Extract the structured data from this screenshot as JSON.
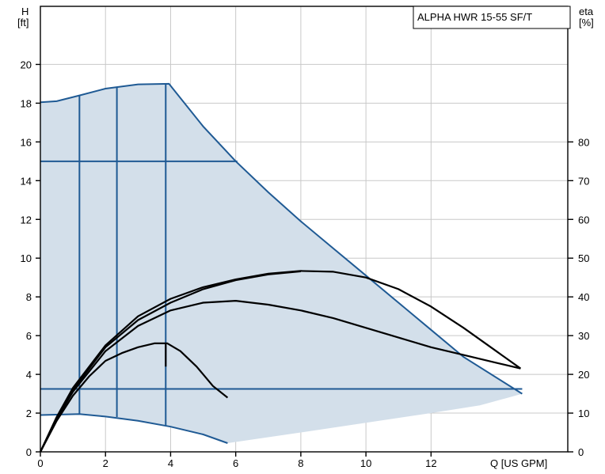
{
  "chart_data": {
    "type": "line",
    "title": "ALPHA HWR 15-55 SF/T",
    "left_axis": {
      "label_line1": "H",
      "label_line2": "[ft]",
      "ticks": [
        0,
        2,
        4,
        6,
        8,
        10,
        12,
        14,
        16,
        18,
        20
      ],
      "range": [
        0,
        23
      ]
    },
    "right_axis": {
      "label_line1": "eta",
      "label_line2": "[%]",
      "ticks": [
        0,
        10,
        20,
        30,
        40,
        50,
        60,
        70,
        80
      ],
      "range": [
        0,
        115
      ]
    },
    "x_axis": {
      "label": "Q [US GPM]",
      "ticks": [
        0,
        2,
        4,
        6,
        8,
        10,
        12
      ],
      "range": [
        0,
        16.2
      ]
    },
    "grid": true,
    "colors": {
      "envelope_fill": "#d3dfea",
      "curve_blue": "#1f5a94",
      "eff_curve": "#000000",
      "grid": "#c8c8c8"
    },
    "envelope": {
      "max_curve": [
        [
          0,
          18.05
        ],
        [
          0.5,
          18.1
        ],
        [
          1.2,
          18.4
        ],
        [
          2,
          18.75
        ],
        [
          3,
          18.97
        ],
        [
          3.95,
          19.0
        ]
      ],
      "max_right_edge": [
        [
          3.95,
          19.0
        ],
        [
          5,
          16.8
        ],
        [
          6,
          15.0
        ],
        [
          7,
          13.4
        ],
        [
          8,
          11.9
        ],
        [
          9,
          10.5
        ],
        [
          10,
          9.1
        ],
        [
          11,
          7.7
        ],
        [
          12,
          6.3
        ],
        [
          13,
          4.9
        ],
        [
          14.8,
          3.0
        ]
      ],
      "min_curve": [
        [
          0,
          1.9
        ],
        [
          1.2,
          1.95
        ],
        [
          2,
          1.82
        ],
        [
          3,
          1.6
        ],
        [
          4,
          1.3
        ],
        [
          5,
          0.9
        ],
        [
          5.75,
          0.45
        ]
      ],
      "bottom_edge": [
        [
          5.75,
          0.45
        ],
        [
          8,
          1.0
        ],
        [
          10,
          1.5
        ],
        [
          12,
          2.0
        ],
        [
          13.5,
          2.4
        ],
        [
          14.8,
          3.0
        ]
      ]
    },
    "constant_pressure_lines": [
      {
        "y": 15.0,
        "x_end": 6.05
      },
      {
        "y": 3.25,
        "x_end": 14.8
      }
    ],
    "proportional_lines": [
      {
        "x": 1.2,
        "y_bottom": 1.95,
        "y_top": 18.4
      },
      {
        "x": 2.35,
        "y_bottom": 1.8,
        "y_top": 18.85
      },
      {
        "x": 3.85,
        "y_bottom": 1.35,
        "y_top": 19.0
      }
    ],
    "efficiency_curves": [
      {
        "points": [
          [
            0,
            0
          ],
          [
            0.5,
            8
          ],
          [
            1,
            14.5
          ],
          [
            1.5,
            19.5
          ],
          [
            2,
            23.5
          ],
          [
            2.5,
            25.5
          ],
          [
            3,
            27
          ],
          [
            3.5,
            28
          ],
          [
            3.9,
            28
          ],
          [
            4.3,
            26
          ],
          [
            4.8,
            22
          ],
          [
            5.3,
            17
          ],
          [
            5.75,
            14
          ]
        ]
      },
      {
        "points": [
          [
            0,
            0
          ],
          [
            0.5,
            8.5
          ],
          [
            1,
            15.5
          ],
          [
            2,
            26
          ],
          [
            3,
            32.5
          ],
          [
            4,
            36.5
          ],
          [
            5,
            38.5
          ],
          [
            6,
            39
          ],
          [
            7,
            38
          ],
          [
            8,
            36.5
          ],
          [
            9,
            34.5
          ],
          [
            10,
            32
          ],
          [
            11,
            29.5
          ],
          [
            12,
            27
          ],
          [
            13,
            25
          ],
          [
            14,
            23
          ],
          [
            14.75,
            21.5
          ]
        ]
      },
      {
        "points": [
          [
            0,
            0
          ],
          [
            0.5,
            9
          ],
          [
            1,
            16.5
          ],
          [
            2,
            27.5
          ],
          [
            3,
            35
          ],
          [
            4,
            39.5
          ],
          [
            5,
            42.5
          ],
          [
            6,
            44.5
          ],
          [
            7,
            46
          ],
          [
            8,
            46.7
          ],
          [
            9,
            46.5
          ],
          [
            10,
            45
          ],
          [
            11,
            42
          ],
          [
            12,
            37.5
          ],
          [
            13,
            32
          ],
          [
            14,
            26
          ],
          [
            14.75,
            21.5
          ]
        ]
      },
      {
        "points": [
          [
            0,
            0
          ],
          [
            0.5,
            8.7
          ],
          [
            1,
            16
          ],
          [
            2,
            27
          ],
          [
            3,
            34
          ],
          [
            4,
            38.5
          ],
          [
            5,
            42
          ],
          [
            6,
            44.3
          ],
          [
            7,
            45.8
          ],
          [
            8,
            46.6
          ]
        ]
      },
      {
        "points": [
          [
            3.85,
            28
          ],
          [
            3.85,
            22
          ]
        ]
      }
    ]
  }
}
